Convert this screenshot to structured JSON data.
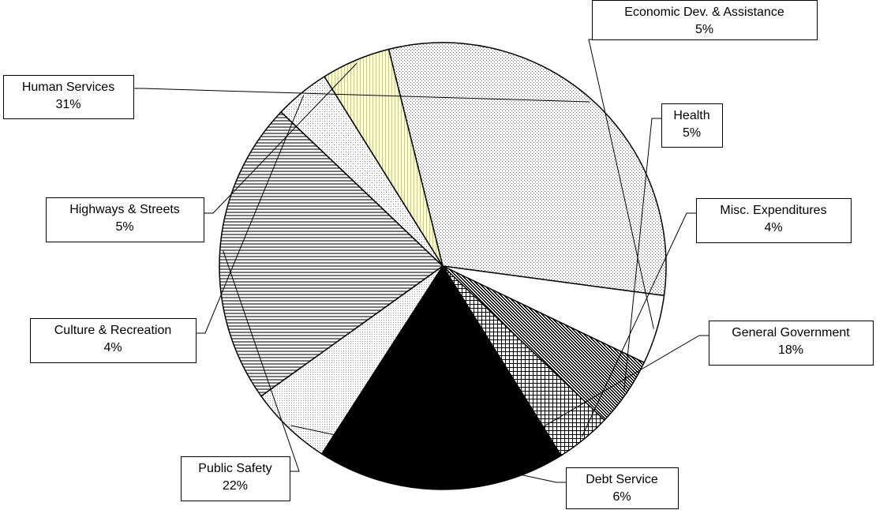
{
  "chart_data": {
    "type": "pie",
    "title": "",
    "slices": [
      {
        "label": "Human Services",
        "value": 31,
        "display": "31%",
        "pattern": "fine-dots"
      },
      {
        "label": "Economic Dev. & Assistance",
        "value": 5,
        "display": "5%",
        "pattern": "solid-white"
      },
      {
        "label": "Health",
        "value": 5,
        "display": "5%",
        "pattern": "dark-diagonal-dots"
      },
      {
        "label": "Misc. Expenditures",
        "value": 4,
        "display": "4%",
        "pattern": "crosshatch"
      },
      {
        "label": "General Government",
        "value": 18,
        "display": "18%",
        "pattern": "solid-black"
      },
      {
        "label": "Debt Service",
        "value": 6,
        "display": "6%",
        "pattern": "light-dots"
      },
      {
        "label": "Public Safety",
        "value": 22,
        "display": "22%",
        "pattern": "horizontal-lines"
      },
      {
        "label": "Culture & Recreation",
        "value": 4,
        "display": "4%",
        "pattern": "sparse-dots"
      },
      {
        "label": "Highways & Streets",
        "value": 5,
        "display": "5%",
        "pattern": "yellow-vertical-lines"
      }
    ],
    "colors": {
      "outline": "#000000",
      "highways_fill": "#ffffcc",
      "background": "#ffffff"
    }
  }
}
